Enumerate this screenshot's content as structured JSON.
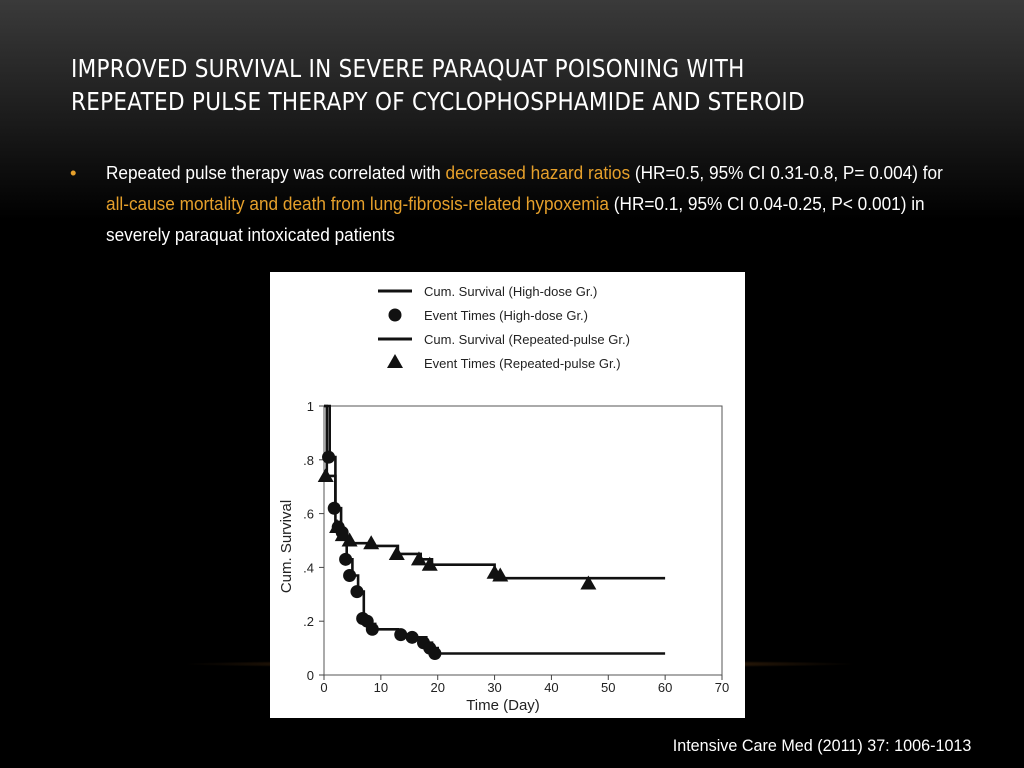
{
  "slide": {
    "title_line1": "Improved survival in severe paraquat poisoning with",
    "title_line2": "repeated pulse therapy of cyclophosphamide and steroid",
    "bullet": {
      "t1": "Repeated pulse therapy was correlated with ",
      "h1": "decreased hazard ratios",
      "t2": " (HR=0.5, 95% CI 0.31-0.8, P= 0.004) for ",
      "h2": "all-cause mortality and death from lung-fibrosis-related hypoxemia",
      "t3": " (HR=0.1, 95% CI 0.04-0.25, P< 0.001) in severely paraquat intoxicated patients"
    },
    "citation": "Intensive Care Med (2011) 37: 1006-1013",
    "accent_color": "#e6a02b"
  },
  "chart_data": {
    "type": "line",
    "step": true,
    "xlabel": "Time (Day)",
    "ylabel": "Cum. Survival",
    "xlim": [
      0,
      70
    ],
    "ylim": [
      0,
      1
    ],
    "xticks": [
      0,
      10,
      20,
      30,
      40,
      50,
      60,
      70
    ],
    "yticks": [
      0,
      0.2,
      0.4,
      0.6,
      0.8,
      1
    ],
    "ytick_labels": [
      "0",
      ".2",
      ".4",
      ".6",
      ".8",
      "1"
    ],
    "legend": {
      "placement": "top",
      "entries": [
        "Cum. Survival (High-dose Gr.)",
        "Event Times (High-dose Gr.)",
        "Cum. Survival (Repeated-pulse Gr.)",
        "Event Times (Repeated-pulse Gr.)"
      ]
    },
    "series": [
      {
        "name": "Cum. Survival (High-dose Gr.)",
        "marker": "circle",
        "step_x": [
          0,
          1,
          1,
          2,
          2,
          3,
          3,
          4,
          4,
          5,
          5,
          6,
          6,
          7,
          7,
          8,
          8,
          9,
          9,
          13,
          13,
          15,
          15,
          18,
          18,
          19,
          19,
          20,
          20,
          60
        ],
        "step_y": [
          1,
          1,
          0.81,
          0.81,
          0.62,
          0.62,
          0.53,
          0.53,
          0.43,
          0.43,
          0.37,
          0.37,
          0.31,
          0.31,
          0.21,
          0.21,
          0.19,
          0.19,
          0.17,
          0.17,
          0.15,
          0.15,
          0.14,
          0.14,
          0.12,
          0.12,
          0.1,
          0.1,
          0.08,
          0.08
        ],
        "events_x": [
          0.8,
          1.8,
          2.5,
          3.2,
          3.8,
          4.5,
          5.8,
          6.8,
          7.6,
          8.5,
          13.5,
          15.5,
          17.5,
          18.6,
          19.5
        ],
        "events_y": [
          0.81,
          0.62,
          0.55,
          0.53,
          0.43,
          0.37,
          0.31,
          0.21,
          0.2,
          0.17,
          0.15,
          0.14,
          0.12,
          0.1,
          0.08
        ]
      },
      {
        "name": "Cum. Survival (Repeated-pulse Gr.)",
        "marker": "triangle",
        "step_x": [
          0,
          0.5,
          0.5,
          2,
          2,
          3,
          3,
          4,
          4,
          8,
          8,
          13,
          13,
          17,
          17,
          19,
          19,
          30,
          30,
          60
        ],
        "step_y": [
          1,
          1,
          0.74,
          0.74,
          0.55,
          0.55,
          0.52,
          0.52,
          0.49,
          0.49,
          0.48,
          0.48,
          0.45,
          0.45,
          0.43,
          0.43,
          0.41,
          0.41,
          0.36,
          0.36
        ],
        "events_x": [
          0.3,
          2.3,
          3.3,
          4.5,
          8.3,
          12.8,
          16.7,
          18.6,
          30,
          31,
          46.5
        ],
        "events_y": [
          0.74,
          0.55,
          0.52,
          0.5,
          0.49,
          0.45,
          0.43,
          0.41,
          0.38,
          0.37,
          0.34
        ]
      }
    ]
  }
}
